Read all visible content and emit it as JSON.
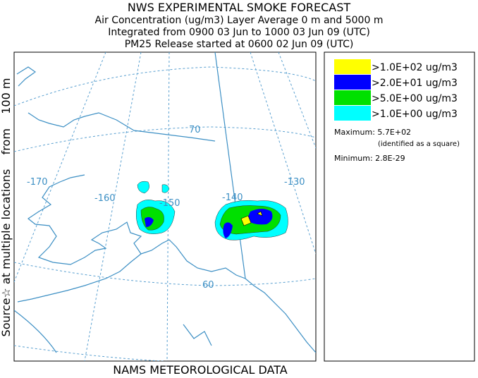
{
  "header": {
    "title": "NWS EXPERIMENTAL SMOKE FORECAST",
    "lines": [
      "Air Concentration (ug/m3) Layer Average    0 m and  5000 m",
      "Integrated from 0900 03 Jun to 1000 03 Jun 09 (UTC)",
      "PM25 Release started at 0600 02 Jun 09 (UTC)"
    ]
  },
  "side_label": "Source☆ at multiple locations    from    100 m",
  "footer": "NAMS METEOROLOGICAL DATA",
  "map": {
    "labels": [
      "-170",
      "-160",
      "-150",
      "-140",
      "-130",
      "70",
      "60"
    ]
  },
  "legend": {
    "items": [
      {
        "label": ">1.0E+02 ug/m3",
        "color": "#ffff00"
      },
      {
        "label": ">2.0E+01 ug/m3",
        "color": "#0000ff"
      },
      {
        "label": ">5.0E+00 ug/m3",
        "color": "#00e000"
      },
      {
        "label": ">1.0E+00 ug/m3",
        "color": "#00ffff"
      }
    ],
    "maximum": "Maximum: 5.7E+02",
    "note": "(identified as a square)",
    "minimum": "Minimum: 2.8E-29"
  }
}
